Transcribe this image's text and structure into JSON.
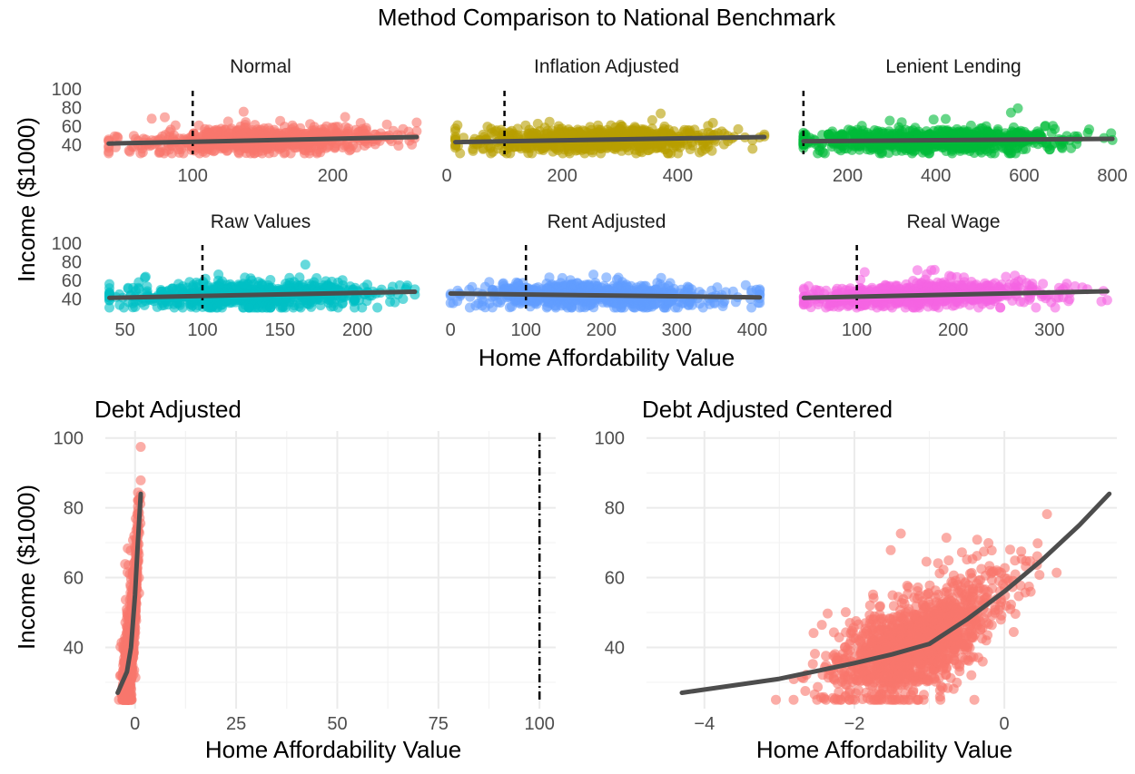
{
  "title": "Method Comparison to National Benchmark",
  "facets_xlabel": "Home Affordability Value",
  "facets_ylabel": "Income ($1000)",
  "colors": {
    "trend": "#4d4d4d",
    "benchmark": "#000000",
    "grid": "#ebebeb"
  },
  "chart_data": [
    {
      "type": "scatter",
      "name": "Normal",
      "title": "Normal",
      "color": "#F8766D",
      "xlim": [
        35,
        262
      ],
      "ylim": [
        30,
        100
      ],
      "x_ticks": [
        100,
        200
      ],
      "y_ticks": [
        40,
        60,
        80,
        100
      ],
      "benchmark_x": 100,
      "trend": [
        [
          40,
          41.5
        ],
        [
          260,
          48.5
        ]
      ],
      "cloud": {
        "x_center": 150,
        "x_spread": 45,
        "y_center": 44,
        "y_spread": 6,
        "n": 700
      }
    },
    {
      "type": "scatter",
      "name": "Inflation Adjusted",
      "title": "Inflation Adjusted",
      "color": "#B79F00",
      "xlim": [
        0,
        555
      ],
      "ylim": [
        30,
        100
      ],
      "x_ticks": [
        0,
        200,
        400
      ],
      "y_ticks": [
        40,
        60,
        80,
        100
      ],
      "benchmark_x": 100,
      "trend": [
        [
          15,
          43
        ],
        [
          550,
          48.5
        ]
      ],
      "cloud": {
        "x_center": 260,
        "x_spread": 110,
        "y_center": 44,
        "y_spread": 6,
        "n": 700
      }
    },
    {
      "type": "scatter",
      "name": "Lenient Lending",
      "title": "Lenient Lending",
      "color": "#00BA38",
      "xlim": [
        90,
        810
      ],
      "ylim": [
        30,
        100
      ],
      "x_ticks": [
        200,
        400,
        600,
        800
      ],
      "y_ticks": [
        40,
        60,
        80,
        100
      ],
      "benchmark_x": 100,
      "trend": [
        [
          100,
          44
        ],
        [
          800,
          46.5
        ]
      ],
      "cloud": {
        "x_center": 400,
        "x_spread": 150,
        "y_center": 45,
        "y_spread": 5.5,
        "n": 800
      }
    },
    {
      "type": "scatter",
      "name": "Raw Values",
      "title": "Raw Values",
      "color": "#00BFC4",
      "xlim": [
        35,
        240
      ],
      "ylim": [
        30,
        100
      ],
      "x_ticks": [
        50,
        100,
        150,
        200
      ],
      "y_ticks": [
        40,
        60,
        80,
        100
      ],
      "benchmark_x": 100,
      "trend": [
        [
          40,
          41.5
        ],
        [
          237,
          48
        ]
      ],
      "cloud": {
        "x_center": 130,
        "x_spread": 42,
        "y_center": 44,
        "y_spread": 6,
        "n": 700
      }
    },
    {
      "type": "scatter",
      "name": "Rent Adjusted",
      "title": "Rent Adjusted",
      "color": "#619CFF",
      "xlim": [
        -5,
        420
      ],
      "ylim": [
        30,
        100
      ],
      "x_ticks": [
        0,
        100,
        200,
        300,
        400
      ],
      "y_ticks": [
        40,
        60,
        80,
        100
      ],
      "benchmark_x": 100,
      "trend": [
        [
          0,
          46
        ],
        [
          410,
          42
        ]
      ],
      "cloud": {
        "x_center": 190,
        "x_spread": 85,
        "y_center": 44,
        "y_spread": 6,
        "n": 700
      }
    },
    {
      "type": "scatter",
      "name": "Real Wage",
      "title": "Real Wage",
      "color": "#F564E3",
      "xlim": [
        40,
        370
      ],
      "ylim": [
        30,
        100
      ],
      "x_ticks": [
        100,
        200,
        300
      ],
      "y_ticks": [
        40,
        60,
        80,
        100
      ],
      "benchmark_x": 100,
      "trend": [
        [
          45,
          41.5
        ],
        [
          360,
          48.5
        ]
      ],
      "cloud": {
        "x_center": 170,
        "x_spread": 65,
        "y_center": 44,
        "y_spread": 6,
        "n": 700
      }
    },
    {
      "type": "scatter",
      "name": "Debt Adjusted",
      "title": "Debt Adjusted",
      "color": "#F8766D",
      "xlabel": "Home Affordability Value",
      "ylabel": "Income ($1000)",
      "xlim": [
        -6,
        104
      ],
      "ylim": [
        24,
        102
      ],
      "x_ticks": [
        0,
        25,
        50,
        75,
        100
      ],
      "y_ticks": [
        40,
        60,
        80,
        100
      ],
      "benchmark_x": 100,
      "trend": [
        [
          -4.3,
          27
        ],
        [
          -2,
          33
        ],
        [
          -1,
          40
        ],
        [
          0,
          55
        ],
        [
          0.7,
          70
        ],
        [
          1.4,
          84
        ]
      ],
      "cloud": {
        "x_center": -1,
        "x_spread": 0.9,
        "y_center": 44,
        "y_spread": 6,
        "n": 900
      }
    },
    {
      "type": "scatter",
      "name": "Debt Adjusted Centered",
      "title": "Debt Adjusted Centered",
      "color": "#F8766D",
      "xlabel": "Home Affordability Value",
      "ylabel": "",
      "xlim": [
        -4.7,
        1.5
      ],
      "ylim": [
        24,
        102
      ],
      "x_ticks": [
        -4,
        -2,
        0
      ],
      "y_ticks": [
        40,
        60,
        80,
        100
      ],
      "trend": [
        [
          -4.3,
          27
        ],
        [
          -3,
          31
        ],
        [
          -2,
          35.5
        ],
        [
          -1.5,
          38
        ],
        [
          -1,
          41
        ],
        [
          -0.5,
          48
        ],
        [
          0,
          56
        ],
        [
          0.5,
          65
        ],
        [
          1,
          75
        ],
        [
          1.4,
          84
        ]
      ],
      "cloud": {
        "x_center": -1.2,
        "x_spread": 0.55,
        "y_center": 44,
        "y_spread": 6,
        "n": 1400
      }
    }
  ]
}
